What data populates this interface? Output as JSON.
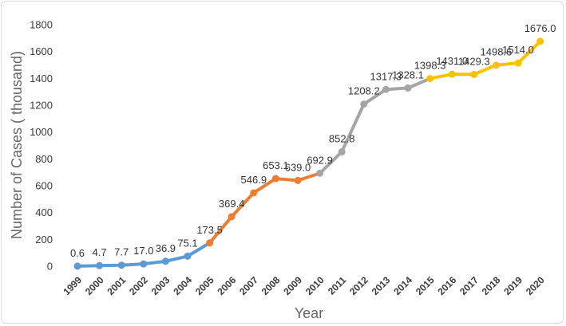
{
  "chart_data": {
    "type": "line",
    "title": "",
    "xlabel": "Year",
    "ylabel": "Number of Cases ( thousand)",
    "ylim": [
      0,
      1800
    ],
    "yticks": [
      "0",
      "200",
      "400",
      "600",
      "800",
      "1000",
      "1200",
      "1400",
      "1600",
      "1800"
    ],
    "grid": false,
    "legend": "none",
    "x": [
      "1999",
      "2000",
      "2001",
      "2002",
      "2003",
      "2004",
      "2005",
      "2006",
      "2007",
      "2008",
      "2009",
      "2010",
      "2011",
      "2012",
      "2013",
      "2014",
      "2015",
      "2016",
      "2017",
      "2018",
      "2019",
      "2020"
    ],
    "values": [
      0.6,
      4.7,
      7.7,
      17.0,
      36.9,
      75.1,
      173.5,
      369.4,
      546.9,
      653.1,
      639.0,
      692.9,
      852.8,
      1208.2,
      1317.3,
      1328.1,
      1398.3,
      1431.0,
      1429.3,
      1498.6,
      1514.0,
      1676.0
    ],
    "data_labels": [
      "0.6",
      "4.7",
      "7.7",
      "17.0",
      "36.9",
      "75.1",
      "173.5",
      "369.4",
      "546.9",
      "653.1",
      "639.0",
      "692.9",
      "852.8",
      "1208.2",
      "1317.3",
      "1328.1",
      "1398.3",
      "1431.0",
      "1429.3",
      "1498.6",
      "1514.0",
      "1676.0"
    ],
    "segments": [
      {
        "color": "#5b9bd5",
        "from": "1999",
        "to": "2005"
      },
      {
        "color": "#ed7d31",
        "from": "2005",
        "to": "2010"
      },
      {
        "color": "#a5a5a5",
        "from": "2010",
        "to": "2015"
      },
      {
        "color": "#ffc000",
        "from": "2015",
        "to": "2020"
      }
    ]
  }
}
